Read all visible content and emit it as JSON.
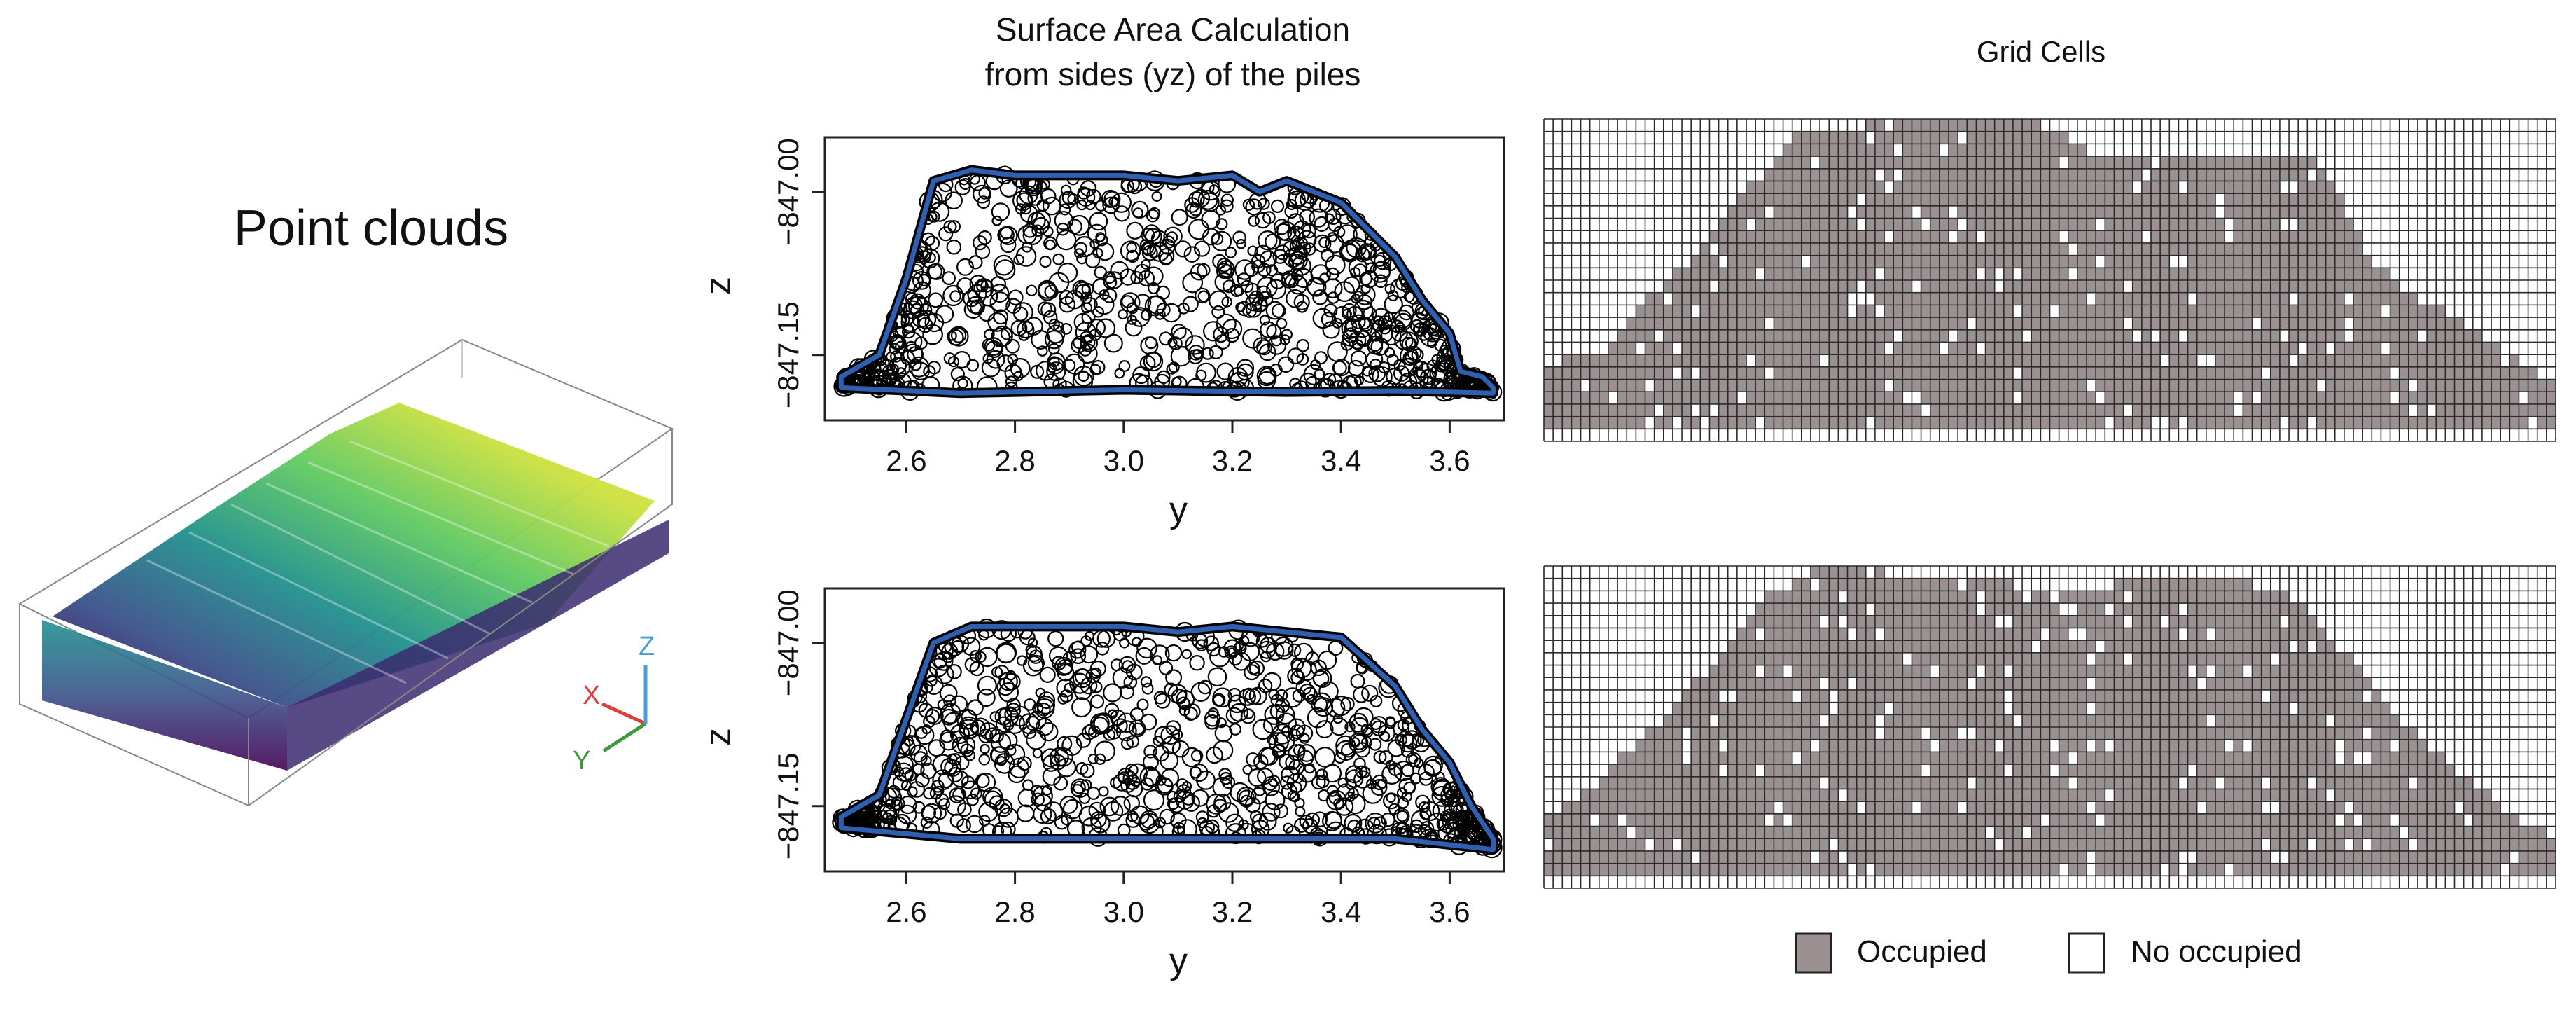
{
  "point_cloud_panel": {
    "title": "Point clouds",
    "axes_gizmo": {
      "x_label": "X",
      "y_label": "Y",
      "z_label": "Z",
      "x_color": "#d8403a",
      "y_color": "#3f9a3f",
      "z_color": "#4a9fd8"
    },
    "colormap": [
      "#440154",
      "#3b528b",
      "#21918c",
      "#5ec962",
      "#fde725"
    ]
  },
  "surface_panel": {
    "title_line1": "Surface Area Calculation",
    "title_line2": "from sides (yz) of the piles",
    "outline_color": "#2f5fb0",
    "point_color": "#000000",
    "plots": [
      {
        "xlabel": "y",
        "ylabel": "z",
        "xticks": [
          "2.6",
          "2.8",
          "3.0",
          "3.2",
          "3.4",
          "3.6"
        ],
        "yticks": [
          "−847.00",
          "−847.15"
        ]
      },
      {
        "xlabel": "y",
        "ylabel": "z",
        "xticks": [
          "2.6",
          "2.8",
          "3.0",
          "3.2",
          "3.4",
          "3.6"
        ],
        "yticks": [
          "−847.00",
          "−847.15"
        ]
      }
    ]
  },
  "grid_panel": {
    "title": "Grid Cells",
    "legend": [
      {
        "label": "Occupied",
        "color": "#9b9193"
      },
      {
        "label": "No occupied",
        "color": "#ffffff"
      }
    ]
  },
  "chart_data": [
    {
      "type": "scatter",
      "title": "Surface Area Calculation from sides (yz) of the piles",
      "xlabel": "y",
      "ylabel": "z",
      "xlim": [
        2.45,
        3.7
      ],
      "ylim": [
        -847.21,
        -846.95
      ],
      "upper_boundary": {
        "y": [
          2.48,
          2.55,
          2.6,
          2.65,
          2.72,
          2.8,
          3.0,
          3.1,
          3.2,
          3.25,
          3.3,
          3.4,
          3.5,
          3.55,
          3.6,
          3.62,
          3.66,
          3.68
        ],
        "z": [
          -847.17,
          -847.15,
          -847.08,
          -846.99,
          -846.98,
          -846.985,
          -846.985,
          -846.99,
          -846.985,
          -847.0,
          -846.99,
          -847.01,
          -847.06,
          -847.1,
          -847.13,
          -847.165,
          -847.17,
          -847.18
        ]
      },
      "lower_boundary": {
        "y": [
          2.48,
          2.7,
          3.0,
          3.3,
          3.5,
          3.68
        ],
        "z": [
          -847.18,
          -847.185,
          -847.182,
          -847.184,
          -847.183,
          -847.185
        ]
      }
    },
    {
      "type": "scatter",
      "title": "Surface Area Calculation from sides (yz) of the piles",
      "xlabel": "y",
      "ylabel": "z",
      "xlim": [
        2.45,
        3.7
      ],
      "ylim": [
        -847.21,
        -846.95
      ],
      "upper_boundary": {
        "y": [
          2.48,
          2.55,
          2.6,
          2.65,
          2.72,
          2.8,
          3.0,
          3.1,
          3.2,
          3.3,
          3.4,
          3.5,
          3.55,
          3.6,
          3.64,
          3.68
        ],
        "z": [
          -847.16,
          -847.14,
          -847.07,
          -847.0,
          -846.985,
          -846.985,
          -846.985,
          -846.99,
          -846.985,
          -846.99,
          -846.995,
          -847.04,
          -847.08,
          -847.11,
          -847.15,
          -847.18
        ]
      },
      "lower_boundary": {
        "y": [
          2.48,
          2.7,
          3.0,
          3.3,
          3.5,
          3.68
        ],
        "z": [
          -847.17,
          -847.18,
          -847.18,
          -847.18,
          -847.18,
          -847.19
        ]
      }
    },
    {
      "type": "heatmap",
      "title": "Grid Cells",
      "columns": 110,
      "rows": 26,
      "legend": [
        "Occupied",
        "No occupied"
      ],
      "occupied_top_profile": [
        0.78,
        0.72,
        0.72,
        0.6,
        0.45,
        0.3,
        0.15,
        0.02,
        0.02,
        0.0,
        0.02,
        0.12,
        0.12,
        0.1,
        0.1,
        0.2,
        0.45,
        0.55,
        0.62,
        0.72,
        0.82
      ],
      "profile_x": [
        0.0,
        0.03,
        0.06,
        0.09,
        0.14,
        0.18,
        0.22,
        0.26,
        0.3,
        0.36,
        0.5,
        0.55,
        0.6,
        0.65,
        0.75,
        0.78,
        0.82,
        0.86,
        0.9,
        0.95,
        1.0
      ]
    },
    {
      "type": "heatmap",
      "title": "Grid Cells",
      "columns": 110,
      "rows": 26,
      "legend": [
        "Occupied",
        "No occupied"
      ],
      "occupied_top_profile": [
        0.78,
        0.72,
        0.65,
        0.55,
        0.4,
        0.25,
        0.1,
        0.02,
        0.0,
        0.05,
        0.06,
        0.06,
        0.05,
        0.05,
        0.12,
        0.3,
        0.45,
        0.58,
        0.68,
        0.78,
        0.85
      ],
      "profile_x": [
        0.0,
        0.03,
        0.06,
        0.09,
        0.14,
        0.18,
        0.22,
        0.26,
        0.3,
        0.4,
        0.5,
        0.55,
        0.6,
        0.7,
        0.75,
        0.8,
        0.84,
        0.88,
        0.92,
        0.96,
        1.0
      ]
    }
  ]
}
